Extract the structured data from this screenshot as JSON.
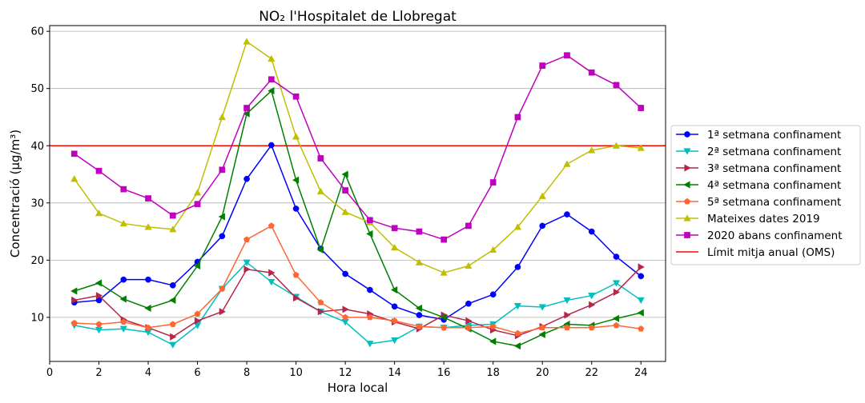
{
  "chart_data": {
    "type": "line",
    "title": "NO₂ l'Hospitalet de Llobregat",
    "xlabel": "Hora local",
    "ylabel": "Concentració (µg/m³)",
    "xlim": [
      0,
      25
    ],
    "ylim": [
      2.3,
      61
    ],
    "xticks": [
      0,
      2,
      4,
      6,
      8,
      10,
      12,
      14,
      16,
      18,
      20,
      22,
      24
    ],
    "yticks": [
      10,
      20,
      30,
      40,
      50,
      60
    ],
    "grid": "horizontal",
    "legend_position": "center-right outside",
    "x": [
      1,
      2,
      3,
      4,
      5,
      6,
      7,
      8,
      9,
      10,
      11,
      12,
      13,
      14,
      15,
      16,
      17,
      18,
      19,
      20,
      21,
      22,
      23,
      24
    ],
    "series": [
      {
        "name": "1ª setmana confinament",
        "color": "#0000ff",
        "marker": "circle",
        "values": [
          12.6,
          13.0,
          16.6,
          16.6,
          15.6,
          19.7,
          24.2,
          34.2,
          40.1,
          29.0,
          22.0,
          17.6,
          14.8,
          11.9,
          10.4,
          9.6,
          12.4,
          14.0,
          18.8,
          26.0,
          28.0,
          25.0,
          20.6,
          17.2
        ]
      },
      {
        "name": "2ª setmana confinament",
        "color": "#00bfbf",
        "marker": "triangle-down",
        "values": [
          8.6,
          7.8,
          8.0,
          7.4,
          5.2,
          8.6,
          15.0,
          19.6,
          16.2,
          13.6,
          11.0,
          9.2,
          5.4,
          6.0,
          8.4,
          8.2,
          8.6,
          8.8,
          12.0,
          11.8,
          13.0,
          13.8,
          16.0,
          13.0
        ]
      },
      {
        "name": "3ª setmana confinament",
        "color": "#b5264a",
        "marker": "triangle-right",
        "values": [
          13.0,
          13.8,
          9.6,
          8.2,
          6.6,
          9.4,
          11.0,
          18.4,
          17.8,
          13.4,
          11.0,
          11.4,
          10.6,
          9.2,
          8.0,
          10.4,
          9.4,
          7.8,
          6.8,
          8.4,
          10.4,
          12.2,
          14.4,
          18.8
        ]
      },
      {
        "name": "4ª setmana confinament",
        "color": "#008000",
        "marker": "triangle-left",
        "values": [
          14.6,
          16.0,
          13.2,
          11.6,
          13.0,
          19.0,
          27.6,
          45.6,
          49.6,
          34.0,
          21.8,
          35.0,
          24.6,
          14.8,
          11.6,
          10.0,
          8.0,
          5.8,
          5.0,
          7.0,
          8.8,
          8.6,
          9.8,
          10.8
        ]
      },
      {
        "name": "5ª setmana confinament",
        "color": "#ff6633",
        "marker": "pentagon",
        "values": [
          9.0,
          8.8,
          9.2,
          8.2,
          8.8,
          10.6,
          15.0,
          23.6,
          26.0,
          17.4,
          12.6,
          10.0,
          10.0,
          9.4,
          8.4,
          8.2,
          8.2,
          8.4,
          7.2,
          8.2,
          8.2,
          8.2,
          8.6,
          8.0
        ]
      },
      {
        "name": "Mateixes dates 2019",
        "color": "#bfbf00",
        "marker": "triangle-up",
        "values": [
          34.2,
          28.2,
          26.4,
          25.8,
          25.4,
          31.8,
          45.0,
          58.2,
          55.2,
          41.6,
          32.0,
          28.4,
          26.6,
          22.2,
          19.6,
          17.8,
          19.0,
          21.8,
          25.8,
          31.2,
          36.8,
          39.2,
          40.0,
          39.6
        ]
      },
      {
        "name": "2020 abans confinament",
        "color": "#bf00bf",
        "marker": "square",
        "values": [
          38.6,
          35.6,
          32.4,
          30.8,
          27.8,
          29.8,
          35.8,
          46.6,
          51.6,
          48.6,
          37.8,
          32.2,
          27.0,
          25.6,
          25.0,
          23.6,
          26.0,
          33.6,
          45.0,
          54.0,
          55.8,
          52.8,
          50.6,
          46.6
        ]
      }
    ],
    "reference_line": {
      "name": "Límit mitja anual (OMS)",
      "value": 40,
      "color": "#ff0000"
    }
  }
}
